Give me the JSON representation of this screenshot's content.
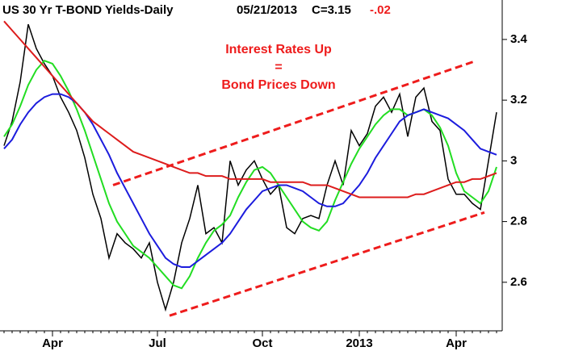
{
  "chart_data": {
    "type": "line",
    "title": "US 30 Yr T-BOND Yields-Daily",
    "date": "05/21/2013",
    "close": "C=3.15",
    "change": "-.02",
    "annotation": [
      "Interest Rates Up",
      "=",
      "Bond Prices Down"
    ],
    "categories": [
      null,
      null,
      null,
      null,
      null,
      null,
      "Apr",
      null,
      null,
      null,
      null,
      null,
      null,
      null,
      null,
      null,
      null,
      null,
      null,
      "Jul",
      null,
      null,
      null,
      null,
      null,
      null,
      null,
      null,
      null,
      null,
      null,
      null,
      "Oct",
      null,
      null,
      null,
      null,
      null,
      null,
      null,
      null,
      null,
      null,
      null,
      "2013",
      null,
      null,
      null,
      null,
      null,
      null,
      null,
      null,
      null,
      null,
      null,
      "Apr",
      null,
      null,
      null,
      null,
      null
    ],
    "series": [
      {
        "color": "#000000",
        "values": [
          3.05,
          3.13,
          3.26,
          3.45,
          3.37,
          3.32,
          3.28,
          3.21,
          3.16,
          3.1,
          3.01,
          2.89,
          2.81,
          2.68,
          2.76,
          2.73,
          2.71,
          2.68,
          2.73,
          2.6,
          2.51,
          2.6,
          2.73,
          2.81,
          2.92,
          2.76,
          2.78,
          2.73,
          3.0,
          2.92,
          2.97,
          3.0,
          2.94,
          2.89,
          2.92,
          2.78,
          2.76,
          2.81,
          2.82,
          2.81,
          2.92,
          3.0,
          2.92,
          3.1,
          3.05,
          3.09,
          3.18,
          3.21,
          3.16,
          3.22,
          3.08,
          3.21,
          3.24,
          3.13,
          3.1,
          2.94,
          2.89,
          2.89,
          2.86,
          2.84,
          3.0,
          3.16
        ]
      },
      {
        "color": "#22dd22",
        "values": [
          3.08,
          3.12,
          3.18,
          3.25,
          3.3,
          3.33,
          3.32,
          3.28,
          3.23,
          3.17,
          3.1,
          3.02,
          2.94,
          2.86,
          2.8,
          2.76,
          2.72,
          2.7,
          2.68,
          2.65,
          2.62,
          2.59,
          2.58,
          2.62,
          2.68,
          2.73,
          2.77,
          2.79,
          2.82,
          2.88,
          2.93,
          2.97,
          2.98,
          2.96,
          2.92,
          2.88,
          2.84,
          2.8,
          2.78,
          2.77,
          2.8,
          2.87,
          2.93,
          2.99,
          3.04,
          3.08,
          3.12,
          3.15,
          3.17,
          3.17,
          3.15,
          3.16,
          3.17,
          3.15,
          3.11,
          3.05,
          2.96,
          2.9,
          2.88,
          2.86,
          2.9,
          2.98
        ]
      },
      {
        "color": "#1c1cdd",
        "values": [
          3.04,
          3.07,
          3.12,
          3.16,
          3.19,
          3.21,
          3.22,
          3.22,
          3.21,
          3.19,
          3.16,
          3.12,
          3.07,
          3.02,
          2.96,
          2.91,
          2.86,
          2.81,
          2.76,
          2.72,
          2.68,
          2.66,
          2.65,
          2.65,
          2.67,
          2.69,
          2.71,
          2.73,
          2.76,
          2.8,
          2.84,
          2.87,
          2.9,
          2.91,
          2.92,
          2.92,
          2.91,
          2.9,
          2.88,
          2.86,
          2.85,
          2.85,
          2.86,
          2.89,
          2.92,
          2.96,
          3.01,
          3.05,
          3.09,
          3.13,
          3.15,
          3.16,
          3.17,
          3.16,
          3.15,
          3.14,
          3.12,
          3.1,
          3.07,
          3.04,
          3.03,
          3.02
        ]
      },
      {
        "color": "#dd1c1c",
        "values": [
          3.46,
          3.43,
          3.4,
          3.37,
          3.34,
          3.31,
          3.28,
          3.25,
          3.22,
          3.19,
          3.16,
          3.13,
          3.11,
          3.09,
          3.07,
          3.05,
          3.03,
          3.02,
          3.01,
          3.0,
          2.99,
          2.98,
          2.97,
          2.96,
          2.96,
          2.95,
          2.95,
          2.95,
          2.94,
          2.94,
          2.94,
          2.94,
          2.94,
          2.93,
          2.93,
          2.93,
          2.93,
          2.93,
          2.92,
          2.92,
          2.92,
          2.91,
          2.9,
          2.89,
          2.88,
          2.88,
          2.88,
          2.88,
          2.88,
          2.88,
          2.88,
          2.89,
          2.89,
          2.9,
          2.91,
          2.92,
          2.93,
          2.93,
          2.94,
          2.94,
          2.95,
          2.96
        ]
      }
    ],
    "trendlines": [
      {
        "color": "#ee1c1c",
        "x": [
          13.5,
          58.5
        ],
        "values": [
          2.92,
          3.33
        ]
      },
      {
        "color": "#ee1c1c",
        "x": [
          20.5,
          59.5
        ],
        "values": [
          2.49,
          2.83
        ]
      }
    ],
    "ylim": [
      2.44,
      3.53
    ],
    "yticks": [
      2.6,
      2.8,
      3,
      3.2,
      3.4
    ]
  }
}
